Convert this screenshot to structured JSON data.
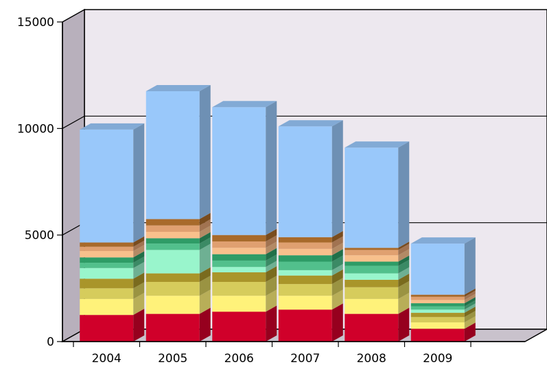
{
  "chart_data": {
    "type": "bar",
    "stacked": true,
    "three_d": true,
    "categories": [
      "2004",
      "2005",
      "2006",
      "2007",
      "2008",
      "2009"
    ],
    "yticks": [
      "0",
      "5000",
      "10000",
      "15000"
    ],
    "ylim": [
      0,
      15000
    ],
    "grid": true,
    "legend": "none",
    "series": [
      {
        "values": [
          1250,
          1300,
          1400,
          1500,
          1300,
          600
        ],
        "color": "#d0002a"
      },
      {
        "values": [
          750,
          850,
          750,
          650,
          700,
          300
        ],
        "color": "#fff27a"
      },
      {
        "values": [
          500,
          650,
          650,
          550,
          550,
          250
        ],
        "color": "#d6cc5c"
      },
      {
        "values": [
          450,
          400,
          450,
          400,
          350,
          200
        ],
        "color": "#a9952a"
      },
      {
        "values": [
          500,
          1100,
          250,
          250,
          300,
          150
        ],
        "color": "#99f5cc"
      },
      {
        "values": [
          250,
          300,
          300,
          400,
          350,
          150
        ],
        "color": "#52c08c"
      },
      {
        "values": [
          250,
          250,
          300,
          300,
          200,
          150
        ],
        "color": "#2e9c66"
      },
      {
        "values": [
          300,
          300,
          300,
          300,
          300,
          150
        ],
        "color": "#f8c08c"
      },
      {
        "values": [
          200,
          300,
          300,
          300,
          250,
          150
        ],
        "color": "#e0a070"
      },
      {
        "values": [
          200,
          300,
          300,
          250,
          100,
          100
        ],
        "color": "#a86a2a"
      },
      {
        "values": [
          5300,
          6000,
          6000,
          5200,
          4700,
          2400
        ],
        "color": "#99c8fa"
      }
    ]
  }
}
